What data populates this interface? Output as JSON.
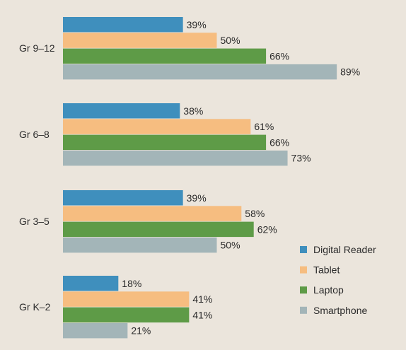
{
  "chart_data": {
    "type": "bar",
    "orientation": "horizontal",
    "categories": [
      "Gr 9–12",
      "Gr 6–8",
      "Gr 3–5",
      "Gr K–2"
    ],
    "series": [
      {
        "name": "Digital Reader",
        "color": "#3f8fbd",
        "values": [
          39,
          38,
          39,
          18
        ],
        "labels": [
          "39%",
          "38%",
          "39%",
          "18%"
        ]
      },
      {
        "name": "Tablet",
        "color": "#f6bd80",
        "values": [
          50,
          61,
          58,
          41
        ],
        "labels": [
          "50%",
          "61%",
          "58%",
          "41%"
        ]
      },
      {
        "name": "Laptop",
        "color": "#5e9b47",
        "values": [
          66,
          66,
          62,
          41
        ],
        "labels": [
          "66%",
          "66%",
          "62%",
          "41%"
        ]
      },
      {
        "name": "Smartphone",
        "color": "#a3b5b8",
        "values": [
          89,
          73,
          50,
          21
        ],
        "labels": [
          "89%",
          "73%",
          "50%",
          "21%"
        ]
      }
    ],
    "xlim": [
      0,
      100
    ],
    "grid": false,
    "legend": "bottom-right"
  }
}
